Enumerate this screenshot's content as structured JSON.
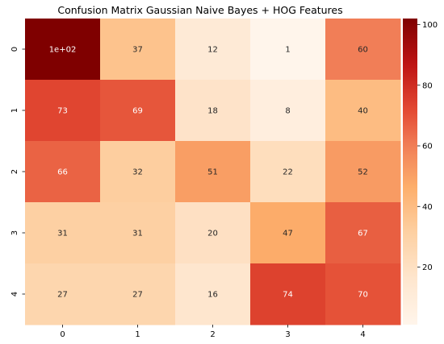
{
  "chart_data": {
    "type": "heatmap",
    "title": "Confusion Matrix Gaussian Naive Bayes + HOG Features",
    "xlabel": "",
    "ylabel": "",
    "x_categories": [
      "0",
      "1",
      "2",
      "3",
      "4"
    ],
    "y_categories": [
      "0",
      "1",
      "2",
      "3",
      "4"
    ],
    "values": [
      [
        102,
        37,
        12,
        1,
        60
      ],
      [
        73,
        69,
        18,
        8,
        40
      ],
      [
        66,
        32,
        51,
        22,
        52
      ],
      [
        31,
        31,
        20,
        47,
        67
      ],
      [
        27,
        27,
        16,
        74,
        70
      ]
    ],
    "cell_labels": [
      [
        "1e+02",
        "37",
        "12",
        "1",
        "60"
      ],
      [
        "73",
        "69",
        "18",
        "8",
        "40"
      ],
      [
        "66",
        "32",
        "51",
        "22",
        "52"
      ],
      [
        "31",
        "31",
        "20",
        "47",
        "67"
      ],
      [
        "27",
        "27",
        "16",
        "74",
        "70"
      ]
    ],
    "colormap": "OrRd",
    "colorbar": {
      "range": [
        1,
        102
      ],
      "ticks": [
        20,
        40,
        60,
        80,
        100
      ],
      "tick_labels": [
        "20",
        "40",
        "60",
        "80",
        "100"
      ]
    },
    "colors": {
      "low": "#fff5eb",
      "high": "#7f0000"
    },
    "grid": false
  }
}
